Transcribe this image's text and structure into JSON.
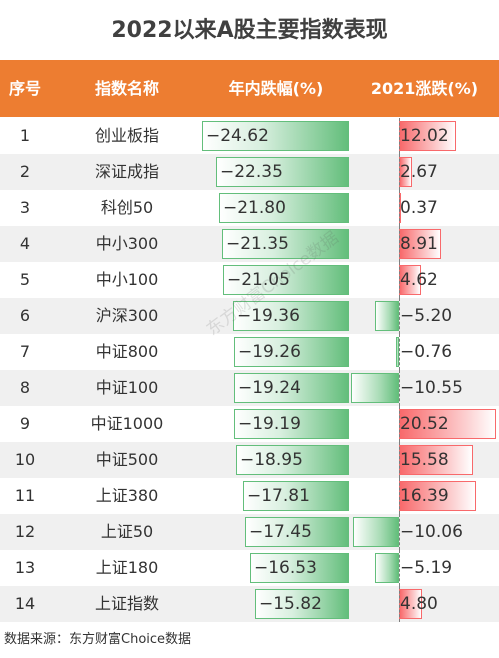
{
  "title": "2022以来A股主要指数表现",
  "headers": {
    "index": "序号",
    "name": "指数名称",
    "ytd": "年内跌幅(%)",
    "y2021": "2021涨跌(%)"
  },
  "chart_data": {
    "type": "table",
    "title": "2022以来A股主要指数表现",
    "columns": [
      "序号",
      "指数名称",
      "年内跌幅(%)",
      "2021涨跌(%)"
    ],
    "rows": [
      {
        "no": "1",
        "name": "创业板指",
        "ytd": "-24.62",
        "y2021": "12.02"
      },
      {
        "no": "2",
        "name": "深证成指",
        "ytd": "-22.35",
        "y2021": "2.67"
      },
      {
        "no": "3",
        "name": "科创50",
        "ytd": "-21.80",
        "y2021": "0.37"
      },
      {
        "no": "4",
        "name": "中小300",
        "ytd": "-21.35",
        "y2021": "8.91"
      },
      {
        "no": "5",
        "name": "中小100",
        "ytd": "-21.05",
        "y2021": "4.62"
      },
      {
        "no": "6",
        "name": "沪深300",
        "ytd": "-19.36",
        "y2021": "-5.20"
      },
      {
        "no": "7",
        "name": "中证800",
        "ytd": "-19.26",
        "y2021": "-0.76"
      },
      {
        "no": "8",
        "name": "中证100",
        "ytd": "-19.24",
        "y2021": "-10.55"
      },
      {
        "no": "9",
        "name": "中证1000",
        "ytd": "-19.19",
        "y2021": "20.52"
      },
      {
        "no": "10",
        "name": "中证500",
        "ytd": "-18.95",
        "y2021": "15.58"
      },
      {
        "no": "11",
        "name": "上证380",
        "ytd": "-17.81",
        "y2021": "16.39"
      },
      {
        "no": "12",
        "name": "上证50",
        "ytd": "-17.45",
        "y2021": "-10.06"
      },
      {
        "no": "13",
        "name": "上证180",
        "ytd": "-16.53",
        "y2021": "-5.19"
      },
      {
        "no": "14",
        "name": "上证指数",
        "ytd": "-15.82",
        "y2021": "4.80"
      }
    ]
  },
  "colors": {
    "header_bg": "#ed7d31",
    "positive_bar": "#f8696b",
    "negative_bar": "#63be7b",
    "alt_row": "#f0f0f0"
  },
  "watermark": "东方财富Choice数据",
  "source": "数据来源：东方财富Choice数据"
}
